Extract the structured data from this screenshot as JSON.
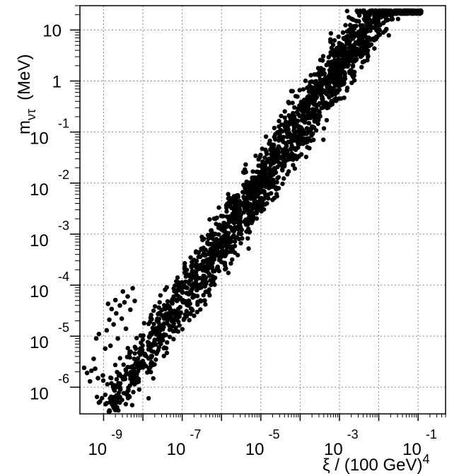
{
  "chart_data": {
    "type": "scatter",
    "x_scale": "log",
    "y_scale": "log",
    "xlim": [
      2.5e-10,
      0.5
    ],
    "ylim": [
      3e-07,
      30
    ],
    "grid": true,
    "xlabel": {
      "prefix": "ξ / (100 GeV)",
      "exponent": "4"
    },
    "ylabel": {
      "main": "m",
      "subscript": "ντ",
      "unit": "(MeV)"
    },
    "x_ticks": [
      {
        "value": 1e-09,
        "base": "10",
        "exp": "-9"
      },
      {
        "value": 1e-07,
        "base": "10",
        "exp": "-7"
      },
      {
        "value": 1e-05,
        "base": "10",
        "exp": "-5"
      },
      {
        "value": 0.001,
        "base": "10",
        "exp": "-3"
      },
      {
        "value": 0.1,
        "base": "10",
        "exp": "-1"
      }
    ],
    "y_ticks": [
      {
        "value": 1e-06,
        "base": "10",
        "exp": "-6"
      },
      {
        "value": 1e-05,
        "base": "10",
        "exp": "-5"
      },
      {
        "value": 0.0001,
        "base": "10",
        "exp": "-4"
      },
      {
        "value": 0.001,
        "base": "10",
        "exp": "-3"
      },
      {
        "value": 0.01,
        "base": "10",
        "exp": "-2"
      },
      {
        "value": 0.1,
        "base": "10",
        "exp": "-1"
      },
      {
        "value": 1,
        "base": "1",
        "exp": ""
      },
      {
        "value": 10,
        "base": "10",
        "exp": ""
      }
    ],
    "points": [
      {
        "x": 3.2e-10,
        "y": 2.4e-06
      },
      {
        "x": 3.8e-10,
        "y": 1.9e-06
      },
      {
        "x": 4.5e-10,
        "y": 1.3e-06
      },
      {
        "x": 4.9e-10,
        "y": 2.1e-06
      },
      {
        "x": 5.6e-10,
        "y": 3.6e-06
      },
      {
        "x": 6.1e-10,
        "y": 2.3e-06
      },
      {
        "x": 7.2e-10,
        "y": 1.5e-06
      },
      {
        "x": 6.5e-10,
        "y": 9e-06
      },
      {
        "x": 7.6e-10,
        "y": 1.1e-05
      },
      {
        "x": 9.6e-10,
        "y": 1.7e-06
      },
      {
        "x": 1.1e-09,
        "y": 5.7e-06
      },
      {
        "x": 1.2e-09,
        "y": 1.3e-05
      },
      {
        "x": 1.3e-09,
        "y": 4.3e-05
      },
      {
        "x": 1.4e-09,
        "y": 2.1e-05
      },
      {
        "x": 1.5e-09,
        "y": 6.5e-06
      },
      {
        "x": 1.6e-09,
        "y": 3.4e-05
      },
      {
        "x": 1.8e-09,
        "y": 1.7e-05
      },
      {
        "x": 2e-09,
        "y": 5.1e-05
      },
      {
        "x": 2.1e-09,
        "y": 2.8e-05
      },
      {
        "x": 2.3e-09,
        "y": 9e-06
      },
      {
        "x": 2.6e-09,
        "y": 4e-05
      },
      {
        "x": 2.9e-09,
        "y": 2.2e-05
      },
      {
        "x": 3.1e-09,
        "y": 7.5e-05
      },
      {
        "x": 3.4e-09,
        "y": 4.6e-05
      },
      {
        "x": 3.7e-09,
        "y": 1.4e-05
      },
      {
        "x": 4.1e-09,
        "y": 6e-05
      },
      {
        "x": 4.8e-09,
        "y": 3.3e-05
      },
      {
        "x": 5.5e-09,
        "y": 8.7e-05
      },
      {
        "x": 6.2e-09,
        "y": 4.9e-05
      }
    ]
  }
}
